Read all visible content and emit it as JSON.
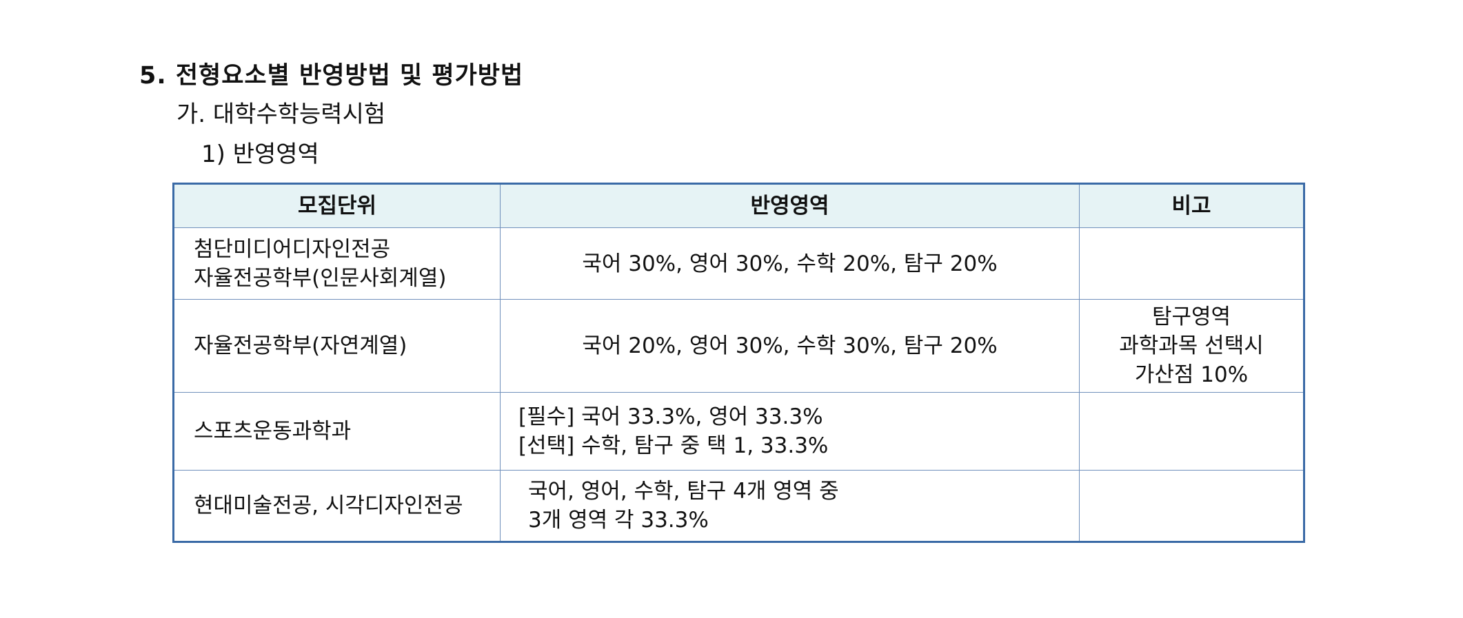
{
  "heading": "5. 전형요소별 반영방법 및 평가방법",
  "subheading_ga": "가. 대학수학능력시험",
  "subheading_1": "1) 반영영역",
  "table": {
    "headers": [
      "모집단위",
      "반영영역",
      "비고"
    ],
    "rows": [
      {
        "unit": [
          "첨단미디어디자인전공",
          "자율전공학부(인문사회계열)"
        ],
        "areas": [
          "국어 30%, 영어 30%, 수학 20%, 탐구 20%"
        ],
        "note": []
      },
      {
        "unit": [
          "자율전공학부(자연계열)"
        ],
        "areas": [
          "국어 20%, 영어 30%, 수학 30%, 탐구 20%"
        ],
        "note": [
          "탐구영역",
          "과학과목 선택시",
          "가산점 10%"
        ]
      },
      {
        "unit": [
          "스포츠운동과학과"
        ],
        "areas": [
          "[필수] 국어 33.3%, 영어 33.3%",
          "[선택] 수학, 탐구 중 택 1, 33.3%"
        ],
        "note": []
      },
      {
        "unit": [
          "현대미술전공, 시각디자인전공"
        ],
        "areas": [
          "국어, 영어, 수학, 탐구 4개 영역 중",
          "3개 영역 각 33.3%"
        ],
        "note": []
      }
    ]
  }
}
